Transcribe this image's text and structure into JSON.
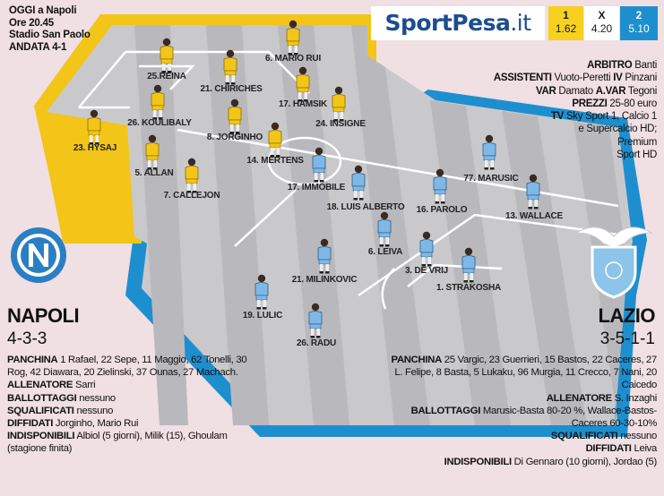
{
  "match_info": {
    "line1": "OGGI a Napoli",
    "line2": "Ore 20.45",
    "line3": "Stadio San Paolo",
    "line4": "ANDATA 4-1"
  },
  "odds": {
    "brand_main": "SportPesa",
    "brand_suffix": ".it",
    "home_label": "1",
    "home_value": "1.62",
    "draw_label": "X",
    "draw_value": "4.20",
    "away_label": "2",
    "away_value": "5.10",
    "brand_color": "#1d4d8e",
    "home_color": "#f6d11f",
    "away_color": "#1e8fce"
  },
  "officials": {
    "arbitro_label": "ARBITRO",
    "arbitro": "Banti",
    "assistenti_label": "ASSISTENTI",
    "assistenti": "Vuoto-Peretti",
    "iv_label": "IV",
    "iv": "Pinzani",
    "var_label": "VAR",
    "var": "Damato",
    "avar_label": "A.VAR",
    "avar": "Tegoni",
    "prezzi_label": "PREZZI",
    "prezzi": "25-80 euro",
    "tv_label": "TV",
    "tv_line1": "Sky Sport 1, Calcio 1",
    "tv_line2": "e Supercalcio HD;",
    "tv_line3": "Premium",
    "tv_line4": "Sport HD"
  },
  "napoli": {
    "name": "NAPOLI",
    "formation": "4-3-3",
    "shirt_color": "#f2c518",
    "players": [
      {
        "label": "25.REINA"
      },
      {
        "label": "21. CHIRICHES"
      },
      {
        "label": "6. MARIO RUI"
      },
      {
        "label": "26. KOULIBALY"
      },
      {
        "label": "17. HAMSIK"
      },
      {
        "label": "24. INSIGNE"
      },
      {
        "label": "23. HYSAJ"
      },
      {
        "label": "8. JORGINHO"
      },
      {
        "label": "5. ALLAN"
      },
      {
        "label": "14. MERTENS"
      },
      {
        "label": "7.  CALLEJON"
      }
    ],
    "panchina_label": "PANCHINA",
    "panchina": "1 Rafael, 22 Sepe, 11 Maggio, 62 Tonelli, 30 Rog, 42 Diawara, 20 Zielinski, 37 Ounas, 27 Machach.",
    "allenatore_label": "ALLENATORE",
    "allenatore": "Sarri",
    "ballottaggi_label": "BALLOTTAGGI",
    "ballottaggi": "nessuno",
    "squalificati_label": "SQUALIFICATI",
    "squalificati": "nessuno",
    "diffidati_label": "DIFFIDATI",
    "diffidati": "Jorginho, Mario Rui",
    "indisponibili_label": "INDISPONIBILI",
    "indisponibili": "Albiol (5 giorni), Milik (15), Ghoulam (stagione finita)"
  },
  "lazio": {
    "name": "LAZIO",
    "formation": "3-5-1-1",
    "shirt_color": "#7fb8e6",
    "players": [
      {
        "label": "17. IMMOBILE"
      },
      {
        "label": "18. LUIS ALBERTO"
      },
      {
        "label": "77. MARUSIC"
      },
      {
        "label": "16. PAROLO"
      },
      {
        "label": "13. WALLACE"
      },
      {
        "label": "6. LEIVA"
      },
      {
        "label": "21. MILINKOVIC"
      },
      {
        "label": "3. DE VRIJ"
      },
      {
        "label": "1. STRAKOSHA"
      },
      {
        "label": "19. LULIC"
      },
      {
        "label": "26. RADU"
      }
    ],
    "panchina_label": "PANCHINA",
    "panchina": "25 Vargic, 23 Guerrieri, 15 Bastos, 22 Caceres, 27 L. Felipe, 8 Basta, 5 Lukaku, 96 Murgia, 11 Crecco, 7 Nani, 20 Caicedo",
    "allenatore_label": "ALLENATORE",
    "allenatore": "S. Inzaghi",
    "ballottaggi_label": "BALLOTTAGGI",
    "ballottaggi": "Marusic-Basta 80-20 %, Wallace-Bastos-Caceres 60-30-10%",
    "squalificati_label": "SQUALIFICATI",
    "squalificati": "nessuno",
    "diffidati_label": "DIFFIDATI",
    "diffidati": "Leiva",
    "indisponibili_label": "INDISPONIBILI",
    "indisponibili": "Di Gennaro (10 giorni), Jordao (5)"
  }
}
